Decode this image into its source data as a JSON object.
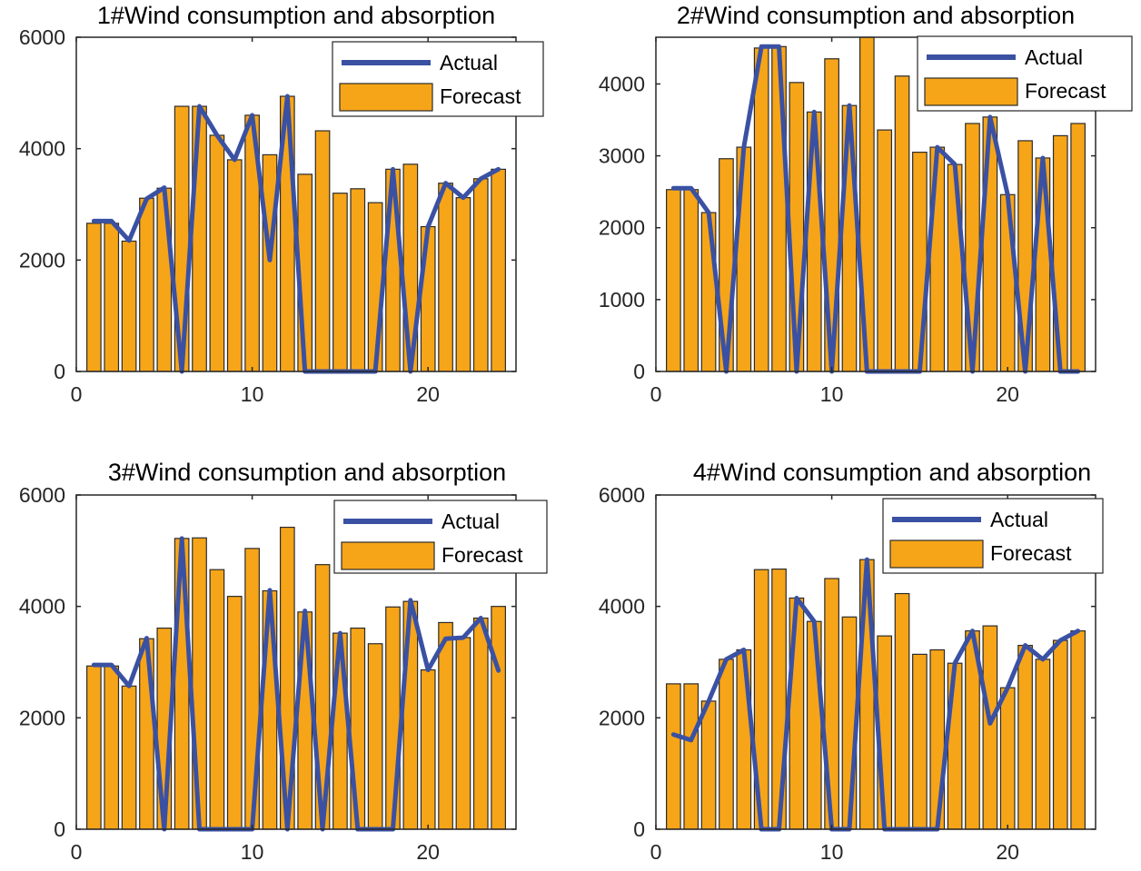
{
  "colors": {
    "actual": "#3a51a3",
    "forecast": "#f6a519",
    "bar_edge": "#2b2b2b",
    "axis": "#262626"
  },
  "chart_data": [
    {
      "type": "bar+line",
      "title": "1#Wind consumption and absorption",
      "xlabel": "",
      "ylabel": "",
      "xlim": [
        0,
        25
      ],
      "ylim": [
        0,
        6000
      ],
      "xticks": [
        0,
        10,
        20
      ],
      "yticks": [
        0,
        2000,
        4000,
        6000
      ],
      "legend": {
        "position": "top-right",
        "entries": [
          "Actual",
          "Forecast"
        ]
      },
      "x": [
        1,
        2,
        3,
        4,
        5,
        6,
        7,
        8,
        9,
        10,
        11,
        12,
        13,
        14,
        15,
        16,
        17,
        18,
        19,
        20,
        21,
        22,
        23,
        24
      ],
      "series": [
        {
          "name": "Forecast",
          "kind": "bar",
          "values": [
            2660,
            2660,
            2340,
            3110,
            3290,
            4760,
            4760,
            4240,
            3800,
            4600,
            3890,
            4940,
            3540,
            4320,
            3200,
            3280,
            3030,
            3630,
            3720,
            2600,
            3380,
            3120,
            3460,
            3630
          ]
        },
        {
          "name": "Actual",
          "kind": "line",
          "values": [
            2700,
            2700,
            2350,
            3100,
            3300,
            0,
            4760,
            4240,
            3800,
            4600,
            2000,
            4940,
            0,
            0,
            0,
            0,
            0,
            3630,
            0,
            2600,
            3380,
            3120,
            3460,
            3630
          ]
        }
      ]
    },
    {
      "type": "bar+line",
      "title": "2#Wind consumption and absorption",
      "xlabel": "",
      "ylabel": "",
      "xlim": [
        0,
        25
      ],
      "ylim": [
        0,
        4650
      ],
      "xticks": [
        0,
        10,
        20
      ],
      "yticks": [
        0,
        1000,
        2000,
        3000,
        4000
      ],
      "legend": {
        "position": "top-right",
        "entries": [
          "Actual",
          "Forecast"
        ]
      },
      "x": [
        1,
        2,
        3,
        4,
        5,
        6,
        7,
        8,
        9,
        10,
        11,
        12,
        13,
        14,
        15,
        16,
        17,
        18,
        19,
        20,
        21,
        22,
        23,
        24
      ],
      "series": [
        {
          "name": "Forecast",
          "kind": "bar",
          "values": [
            2530,
            2530,
            2210,
            2960,
            3120,
            4500,
            4520,
            4020,
            3610,
            4350,
            3700,
            4650,
            3360,
            4110,
            3050,
            3120,
            2880,
            3450,
            3540,
            2460,
            3210,
            2970,
            3280,
            3450
          ]
        },
        {
          "name": "Actual",
          "kind": "line",
          "values": [
            2550,
            2550,
            2210,
            0,
            3120,
            4520,
            4520,
            0,
            3610,
            0,
            3700,
            0,
            0,
            0,
            0,
            3120,
            2880,
            0,
            3540,
            2460,
            0,
            2970,
            0,
            0
          ]
        }
      ]
    },
    {
      "type": "bar+line",
      "title": "3#Wind consumption and absorption",
      "xlabel": "",
      "ylabel": "",
      "xlim": [
        0,
        25
      ],
      "ylim": [
        0,
        6000
      ],
      "xticks": [
        0,
        10,
        20
      ],
      "yticks": [
        0,
        2000,
        4000,
        6000
      ],
      "legend": {
        "position": "top-right",
        "entries": [
          "Actual",
          "Forecast"
        ]
      },
      "x": [
        1,
        2,
        3,
        4,
        5,
        6,
        7,
        8,
        9,
        10,
        11,
        12,
        13,
        14,
        15,
        16,
        17,
        18,
        19,
        20,
        21,
        22,
        23,
        24
      ],
      "series": [
        {
          "name": "Forecast",
          "kind": "bar",
          "values": [
            2930,
            2930,
            2570,
            3420,
            3610,
            5220,
            5230,
            4660,
            4180,
            5040,
            4280,
            5420,
            3900,
            4750,
            3520,
            3610,
            3330,
            3990,
            4090,
            2860,
            3710,
            3440,
            3790,
            4000
          ]
        },
        {
          "name": "Actual",
          "kind": "line",
          "values": [
            2950,
            2950,
            2570,
            3430,
            0,
            5220,
            0,
            0,
            0,
            0,
            4290,
            0,
            3920,
            0,
            3520,
            0,
            0,
            0,
            4110,
            2860,
            3420,
            3440,
            3790,
            2850
          ]
        }
      ]
    },
    {
      "type": "bar+line",
      "title": "4#Wind consumption and absorption",
      "xlabel": "",
      "ylabel": "",
      "xlim": [
        0,
        25
      ],
      "ylim": [
        0,
        6000
      ],
      "xticks": [
        0,
        10,
        20
      ],
      "yticks": [
        0,
        2000,
        4000,
        6000
      ],
      "legend": {
        "position": "top-right",
        "entries": [
          "Actual",
          "Forecast"
        ]
      },
      "x": [
        1,
        2,
        3,
        4,
        5,
        6,
        7,
        8,
        9,
        10,
        11,
        12,
        13,
        14,
        15,
        16,
        17,
        18,
        19,
        20,
        21,
        22,
        23,
        24
      ],
      "series": [
        {
          "name": "Forecast",
          "kind": "bar",
          "values": [
            2610,
            2610,
            2300,
            3050,
            3220,
            4660,
            4670,
            4150,
            3730,
            4500,
            3810,
            4840,
            3470,
            4230,
            3140,
            3220,
            2980,
            3560,
            3650,
            2540,
            3300,
            3050,
            3390,
            3560
          ]
        },
        {
          "name": "Actual",
          "kind": "line",
          "values": [
            1700,
            1600,
            2300,
            3050,
            3220,
            0,
            0,
            4150,
            3730,
            0,
            0,
            4840,
            0,
            0,
            0,
            0,
            2980,
            3560,
            1900,
            2540,
            3300,
            3050,
            3390,
            3560
          ]
        }
      ]
    }
  ]
}
